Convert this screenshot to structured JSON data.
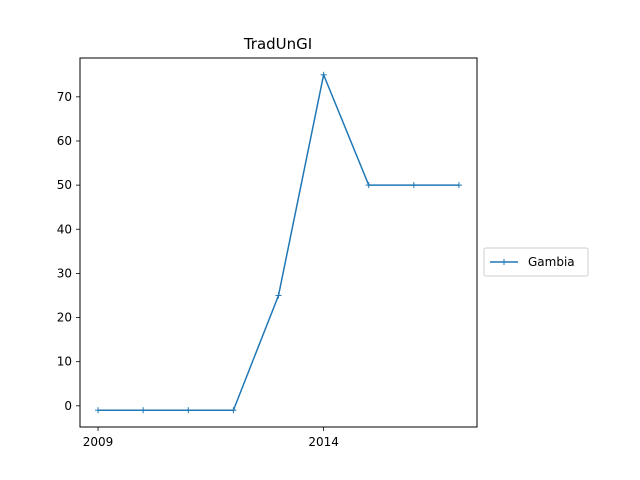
{
  "chart_data": {
    "type": "line",
    "title": "TradUnGI",
    "xlabel": "",
    "ylabel": "",
    "x": [
      2009,
      2010,
      2011,
      2012,
      2013,
      2014,
      2015,
      2016,
      2017
    ],
    "series": [
      {
        "name": "Gambia",
        "values": [
          -1,
          -1,
          -1,
          -1,
          25,
          75,
          50,
          50,
          50
        ],
        "color": "#1f77b4",
        "marker": "plus"
      }
    ],
    "xlim": [
      2008.6,
      2017.4
    ],
    "ylim": [
      -4.8,
      78.8
    ],
    "xticks": [
      2009,
      2014
    ],
    "yticks": [
      0,
      10,
      20,
      30,
      40,
      50,
      60,
      70
    ],
    "grid": false,
    "legend_position": "outside-right"
  }
}
